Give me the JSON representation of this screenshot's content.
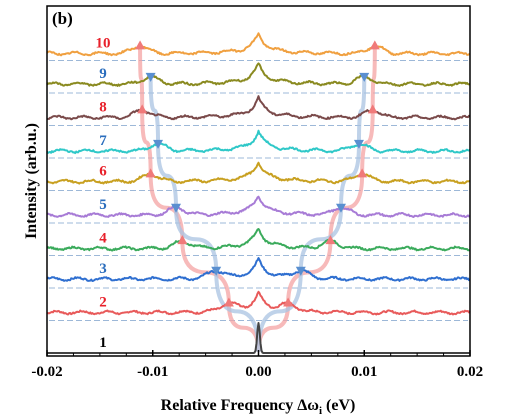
{
  "chart_data": {
    "type": "line",
    "panel_label": "(b)",
    "xlabel": "Relative Frequency Δω",
    "xlabel_sub": "i",
    "xlabel_unit": " (eV)",
    "ylabel": "Intensity  (arb.u.)",
    "xlim": [
      -0.02,
      0.02
    ],
    "xticks": [
      -0.02,
      -0.01,
      0.0,
      0.01,
      0.02
    ],
    "xtick_labels": [
      "-0.02",
      "-0.01",
      "0.00",
      "0.01",
      "0.02"
    ],
    "grid": false,
    "legend": "none",
    "center_peak_x": 0.0,
    "parabola_colors": {
      "red": "#f4a3a3",
      "blue": "#a9c3e2"
    },
    "series": [
      {
        "label": "1",
        "label_color": "#000000",
        "color": "#444444",
        "sidebands": [],
        "marker": "none"
      },
      {
        "label": "2",
        "label_color": "#e8202a",
        "color": "#e85a5a",
        "sidebands": [
          -0.0028,
          0.0028
        ],
        "marker": "triangle-up"
      },
      {
        "label": "3",
        "label_color": "#2a6dbd",
        "color": "#2f6fd0",
        "sidebands": [
          -0.004,
          0.004
        ],
        "marker": "triangle-down"
      },
      {
        "label": "4",
        "label_color": "#e8202a",
        "color": "#3bab5c",
        "sidebands": [
          -0.0072,
          0.0068
        ],
        "marker": "triangle-up"
      },
      {
        "label": "5",
        "label_color": "#2a6dbd",
        "color": "#a77bd6",
        "sidebands": [
          -0.0078,
          0.0078
        ],
        "marker": "triangle-down"
      },
      {
        "label": "6",
        "label_color": "#e8202a",
        "color": "#c8a020",
        "sidebands": [
          -0.0102,
          0.0098
        ],
        "marker": "triangle-up"
      },
      {
        "label": "7",
        "label_color": "#2a6dbd",
        "color": "#2fc8c8",
        "sidebands": [
          -0.0095,
          0.0095
        ],
        "marker": "triangle-down"
      },
      {
        "label": "8",
        "label_color": "#e8202a",
        "color": "#7a4a4a",
        "sidebands": [
          -0.011,
          0.0108
        ],
        "marker": "triangle-up"
      },
      {
        "label": "9",
        "label_color": "#2a6dbd",
        "color": "#8a8a20",
        "sidebands": [
          -0.0102,
          0.01
        ],
        "marker": "triangle-down"
      },
      {
        "label": "10",
        "label_color": "#e8202a",
        "color": "#f0a040",
        "sidebands": [
          -0.0112,
          0.011
        ],
        "marker": "triangle-up"
      }
    ]
  }
}
